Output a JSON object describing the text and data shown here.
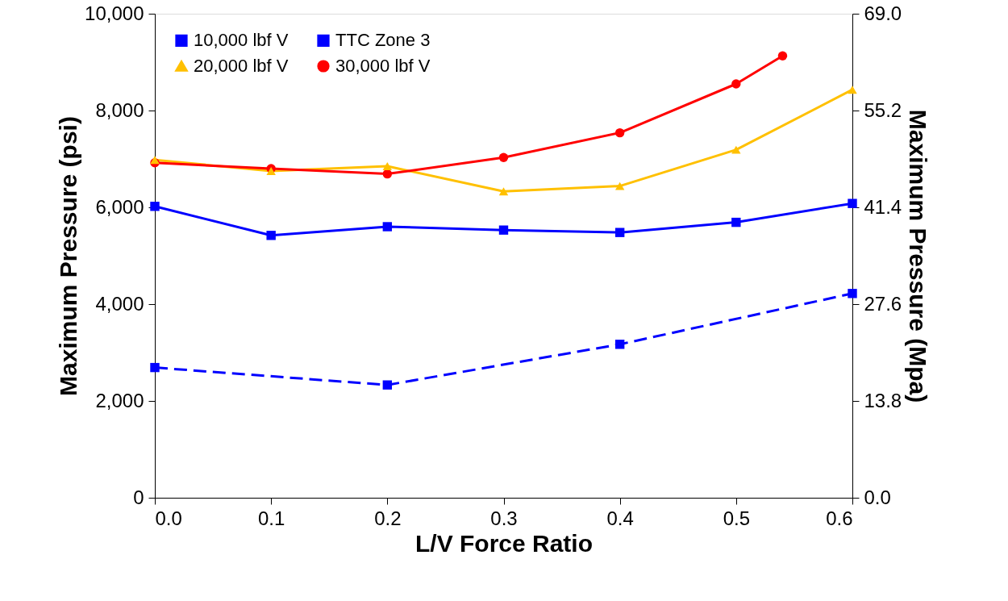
{
  "chart_data": {
    "type": "line",
    "xlabel": "L/V Force Ratio",
    "ylabel": "Maximum Pressure (psi)",
    "y2label": "Maximum Pressure (Mpa)",
    "x": [
      0,
      0.1,
      0.2,
      0.3,
      0.4,
      0.5,
      0.6
    ],
    "series": [
      {
        "name": "10,000 lbf V",
        "color": "#0000ff",
        "marker": "square",
        "line_style": "solid",
        "values": [
          6020,
          5420,
          5600,
          5530,
          5480,
          5690,
          6080
        ]
      },
      {
        "name": "20,000 lbf V",
        "color": "#ffc000",
        "marker": "triangle",
        "line_style": "solid",
        "values": [
          6980,
          6750,
          6850,
          6330,
          6440,
          7190,
          8430
        ]
      },
      {
        "name": "TTC Zone 3",
        "color": "#0000ff",
        "marker": "square",
        "line_style": "dashed",
        "x": [
          0,
          0.2,
          0.4,
          0.6
        ],
        "values": [
          2690,
          2330,
          3170,
          4220
        ]
      },
      {
        "name": "30,000 lbf V",
        "color": "#ff0000",
        "marker": "circle",
        "line_style": "solid",
        "x": [
          0,
          0.1,
          0.2,
          0.3,
          0.4,
          0.5,
          0.54
        ],
        "values": [
          6920,
          6800,
          6690,
          7030,
          7540,
          8550,
          9130
        ]
      }
    ],
    "xlim": [
      0,
      0.6
    ],
    "xticks": [
      {
        "value": 0,
        "label": "0.0"
      },
      0.1,
      0.2,
      0.3,
      0.4,
      0.5,
      0.6
    ],
    "ylim": [
      0,
      10000
    ],
    "yticks": [
      {
        "value": 0,
        "label": "0"
      },
      {
        "value": 2000,
        "label": "2,000"
      },
      {
        "value": 4000,
        "label": "4,000"
      },
      {
        "value": 6000,
        "label": "6,000"
      },
      {
        "value": 8000,
        "label": "8,000"
      },
      {
        "value": 10000,
        "label": "10,000"
      }
    ],
    "y2lim": [
      0,
      69.0
    ],
    "y2ticks": [
      {
        "value": 0,
        "label": "0.0"
      },
      13.8,
      27.6,
      41.4,
      55.2,
      {
        "value": 69.0,
        "label": "69.0"
      }
    ],
    "grid": false,
    "legend": "top left"
  }
}
